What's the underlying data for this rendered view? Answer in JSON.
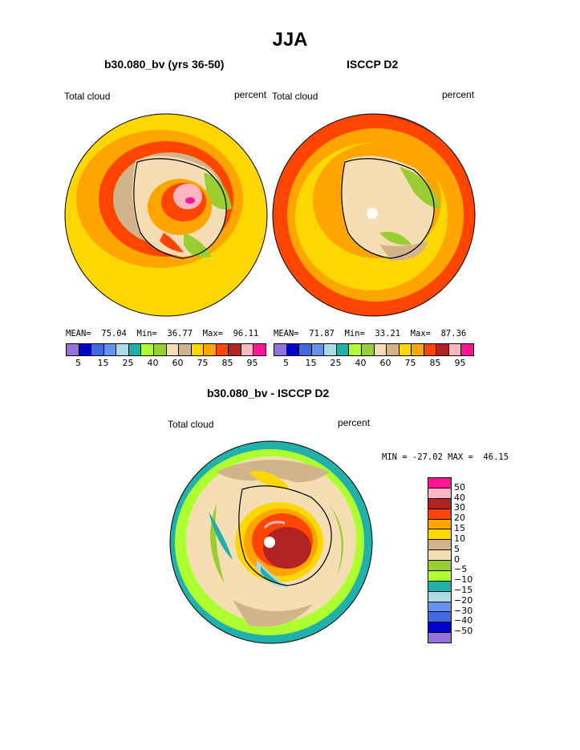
{
  "title": "JJA",
  "panels": [
    {
      "subtitle": "b30.080_bv (yrs 36-50)",
      "left_label": "Total cloud",
      "right_label": "percent",
      "stats": "MEAN=  75.04  Min=  36.77  Max=  96.11"
    },
    {
      "subtitle": "ISCCP D2",
      "left_label": "Total cloud",
      "right_label": "percent",
      "stats": "MEAN=  71.87  Min=  33.21  Max=  87.36"
    }
  ],
  "abs_colorbar": {
    "colors": [
      "#9370db",
      "#0000cd",
      "#4169e1",
      "#6495ed",
      "#add8e6",
      "#20b2aa",
      "#adff2f",
      "#9acd32",
      "#f5deb3",
      "#d2b48c",
      "#ffd700",
      "#ffa500",
      "#ff4500",
      "#b22222",
      "#ffb6c1",
      "#ff1493"
    ],
    "labels": [
      "5",
      "15",
      "25",
      "40",
      "60",
      "75",
      "85",
      "95"
    ]
  },
  "diff": {
    "subtitle": "b30.080_bv - ISCCP D2",
    "left_label": "Total cloud",
    "right_label": "percent",
    "minmax": "MIN = -27.02 MAX =  46.15",
    "colors": [
      "#ff1493",
      "#ffb6c1",
      "#b22222",
      "#ff4500",
      "#ffa500",
      "#ffd700",
      "#d2b48c",
      "#f5deb3",
      "#9acd32",
      "#adff2f",
      "#20b2aa",
      "#add8e6",
      "#6495ed",
      "#4169e1",
      "#0000cd",
      "#9370db"
    ],
    "labels": [
      "50",
      "40",
      "30",
      "20",
      "15",
      "10",
      "5",
      "0",
      "−5",
      "−10",
      "−15",
      "−20",
      "−30",
      "−40",
      "−50"
    ]
  }
}
